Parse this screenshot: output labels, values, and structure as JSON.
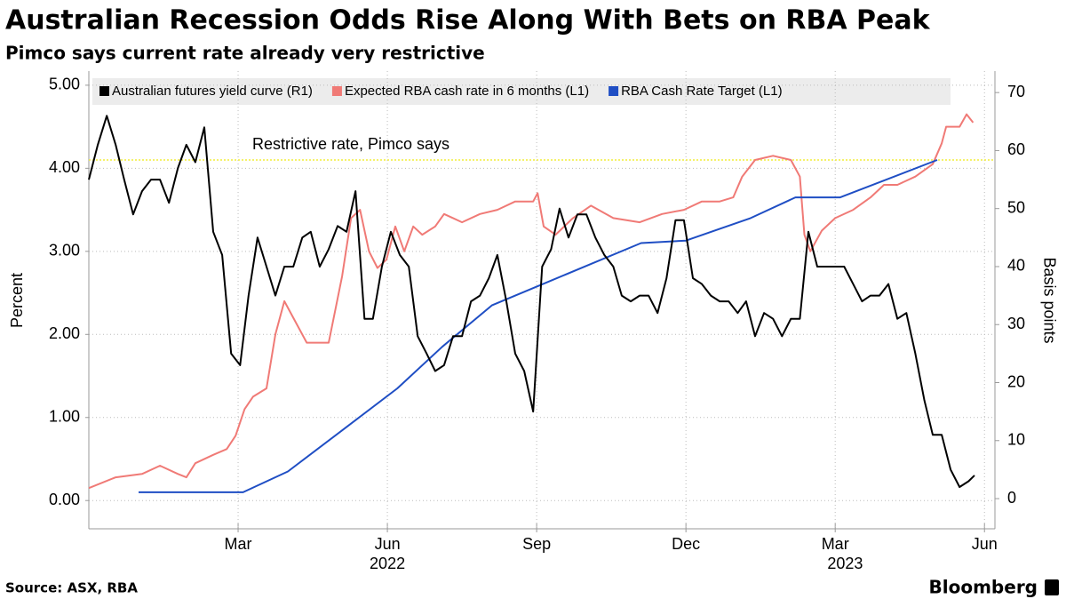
{
  "chart_data": {
    "type": "line",
    "title": "Australian Recession Odds Rise Along With Bets on RBA Peak",
    "subtitle": "Pimco says current rate already very restrictive",
    "source": "Source: ASX, RBA",
    "brand": "Bloomberg",
    "ylabel": "Percent",
    "y2label": "Basis points",
    "xlim": [
      0,
      18.21
    ],
    "xticks": [
      {
        "value": 3,
        "label": "Mar"
      },
      {
        "value": 6,
        "label": "Jun"
      },
      {
        "value": 9,
        "label": "Sep"
      },
      {
        "value": 12,
        "label": "Dec"
      },
      {
        "value": 15,
        "label": "Mar"
      },
      {
        "value": 18,
        "label": "Jun"
      }
    ],
    "x_year_labels": [
      {
        "value": 6,
        "label": "2022"
      },
      {
        "value": 15.2,
        "label": "2023"
      }
    ],
    "ylim": [
      -0.34,
      5.17
    ],
    "yticks": [
      {
        "value": 0,
        "label": "0.00"
      },
      {
        "value": 1,
        "label": "1.00"
      },
      {
        "value": 2,
        "label": "2.00"
      },
      {
        "value": 3,
        "label": "3.00"
      },
      {
        "value": 4,
        "label": "4.00"
      },
      {
        "value": 5,
        "label": "5.00"
      }
    ],
    "y2lim": [
      -5.2,
      73.7
    ],
    "y2ticks": [
      0,
      10,
      20,
      30,
      40,
      50,
      60,
      70
    ],
    "grid": true,
    "legend": "top",
    "reference_line": {
      "value": 4.1,
      "label": "Restrictive rate, Pimco says",
      "color": "#f2ee3c"
    },
    "series": [
      {
        "name": "Australian futures yield curve (R1)",
        "color": "#000000",
        "axis": "y2",
        "x": [
          0,
          0.18,
          0.36,
          0.54,
          0.71,
          0.89,
          1.07,
          1.25,
          1.43,
          1.61,
          1.79,
          1.96,
          2.14,
          2.32,
          2.5,
          2.68,
          2.86,
          3.04,
          3.21,
          3.39,
          3.57,
          3.75,
          3.93,
          4.11,
          4.29,
          4.46,
          4.64,
          4.82,
          5,
          5.18,
          5.36,
          5.54,
          5.71,
          5.89,
          6.07,
          6.25,
          6.43,
          6.61,
          6.79,
          6.96,
          7.14,
          7.32,
          7.5,
          7.68,
          7.86,
          8.04,
          8.21,
          8.39,
          8.57,
          8.75,
          8.93,
          9.11,
          9.29,
          9.46,
          9.64,
          9.82,
          10,
          10.18,
          10.36,
          10.54,
          10.71,
          10.89,
          11.07,
          11.25,
          11.43,
          11.61,
          11.79,
          11.96,
          12.14,
          12.32,
          12.5,
          12.68,
          12.86,
          13.04,
          13.21,
          13.39,
          13.57,
          13.75,
          13.93,
          14.11,
          14.29,
          14.46,
          14.64,
          14.82,
          15,
          15.18,
          15.36,
          15.54,
          15.71,
          15.89,
          16.07,
          16.25,
          16.43,
          16.61,
          16.79,
          16.96,
          17.14,
          17.32,
          17.5,
          17.68,
          17.8
        ],
        "values": [
          55,
          61,
          66,
          61,
          55,
          49,
          53,
          55,
          55,
          51,
          57,
          61,
          58,
          64,
          46,
          42,
          25,
          23,
          35,
          45,
          40,
          35,
          40,
          40,
          45,
          46,
          40,
          43,
          47,
          46,
          53,
          31,
          31,
          40,
          46,
          42,
          40,
          28,
          25,
          22,
          23,
          28,
          28,
          34,
          35,
          38,
          42,
          34,
          25,
          22,
          15,
          40,
          43,
          50,
          45,
          49,
          49,
          45,
          42,
          40,
          35,
          34,
          35,
          35,
          32,
          38,
          48,
          48,
          38,
          37,
          35,
          34,
          34,
          32,
          34,
          28,
          32,
          31,
          28,
          31,
          31,
          46,
          40,
          40,
          40,
          40,
          37,
          34,
          35,
          35,
          37,
          31,
          32,
          25,
          17,
          11,
          11,
          5,
          2,
          3,
          4
        ]
      },
      {
        "name": "Expected RBA cash rate in 6 months (L1)",
        "color": "#f07a76",
        "axis": "y",
        "x": [
          0,
          0.54,
          1.07,
          1.43,
          1.79,
          1.96,
          2.14,
          2.5,
          2.77,
          2.95,
          3.13,
          3.3,
          3.57,
          3.75,
          3.93,
          4.11,
          4.38,
          4.82,
          5.09,
          5.27,
          5.45,
          5.63,
          5.8,
          5.98,
          6.16,
          6.34,
          6.52,
          6.7,
          6.96,
          7.14,
          7.5,
          7.86,
          8.21,
          8.57,
          8.93,
          9.02,
          9.14,
          9.38,
          9.73,
          10.09,
          10.54,
          11.07,
          11.52,
          11.96,
          12.32,
          12.68,
          12.95,
          13.13,
          13.39,
          13.75,
          14.11,
          14.29,
          14.38,
          14.5,
          14.73,
          15,
          15.36,
          15.71,
          15.98,
          16.25,
          16.61,
          16.96,
          17.14,
          17.23,
          17.5,
          17.64,
          17.77
        ],
        "values": [
          0.15,
          0.28,
          0.32,
          0.42,
          0.32,
          0.28,
          0.45,
          0.55,
          0.62,
          0.78,
          1.1,
          1.25,
          1.35,
          2.0,
          2.4,
          2.2,
          1.9,
          1.9,
          2.7,
          3.4,
          3.5,
          3.0,
          2.8,
          2.9,
          3.3,
          3.0,
          3.3,
          3.2,
          3.3,
          3.45,
          3.35,
          3.45,
          3.5,
          3.6,
          3.6,
          3.7,
          3.3,
          3.2,
          3.4,
          3.55,
          3.4,
          3.35,
          3.45,
          3.5,
          3.6,
          3.6,
          3.65,
          3.9,
          4.1,
          4.15,
          4.1,
          3.9,
          3.2,
          3.0,
          3.25,
          3.4,
          3.5,
          3.65,
          3.8,
          3.8,
          3.9,
          4.05,
          4.3,
          4.5,
          4.5,
          4.65,
          4.55
        ]
      },
      {
        "name": "RBA Cash Rate Target (L1)",
        "color": "#1f4ec4",
        "axis": "y",
        "x": [
          1.0,
          3.1,
          4.0,
          5.1,
          6.2,
          7.1,
          8.1,
          9.1,
          10.1,
          11.1,
          12.0,
          13.3,
          14.2,
          15.1,
          17.05
        ],
        "values": [
          0.1,
          0.1,
          0.35,
          0.85,
          1.35,
          1.85,
          2.35,
          2.6,
          2.85,
          3.1,
          3.13,
          3.4,
          3.65,
          3.65,
          4.1
        ]
      }
    ]
  }
}
